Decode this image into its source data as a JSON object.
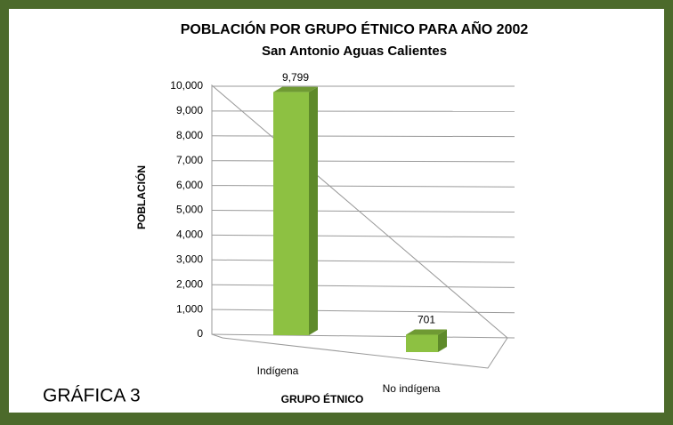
{
  "chart_data": {
    "type": "bar3d",
    "title": "POBLACIÓN POR GRUPO ÉTNICO PARA AÑO 2002",
    "subtitle": "San Antonio Aguas Calientes",
    "y_label": "POBLACIÓN",
    "x_label": "GRUPO ÉTNICO",
    "annotation": "GRÁFICA 3",
    "categories": [
      "Indígena",
      "No indígena"
    ],
    "values": [
      9799,
      701
    ],
    "value_labels": [
      "9,799",
      "701"
    ],
    "color": "#8dc142",
    "ylim": [
      0,
      10000
    ],
    "yticks": [
      0,
      {
        "value": 1000,
        "label": "1,000"
      },
      {
        "value": 2000,
        "label": "2,000"
      },
      {
        "value": 3000,
        "label": "3,000"
      },
      {
        "value": 4000,
        "label": "4,000"
      },
      {
        "value": 5000,
        "label": "5,000"
      },
      {
        "value": 6000,
        "label": "6,000"
      },
      {
        "value": 7000,
        "label": "7,000"
      },
      {
        "value": 8000,
        "label": "8,000"
      },
      {
        "value": 9000,
        "label": "9,000"
      },
      {
        "value": 10000,
        "label": "10,000"
      }
    ],
    "grid": true
  }
}
